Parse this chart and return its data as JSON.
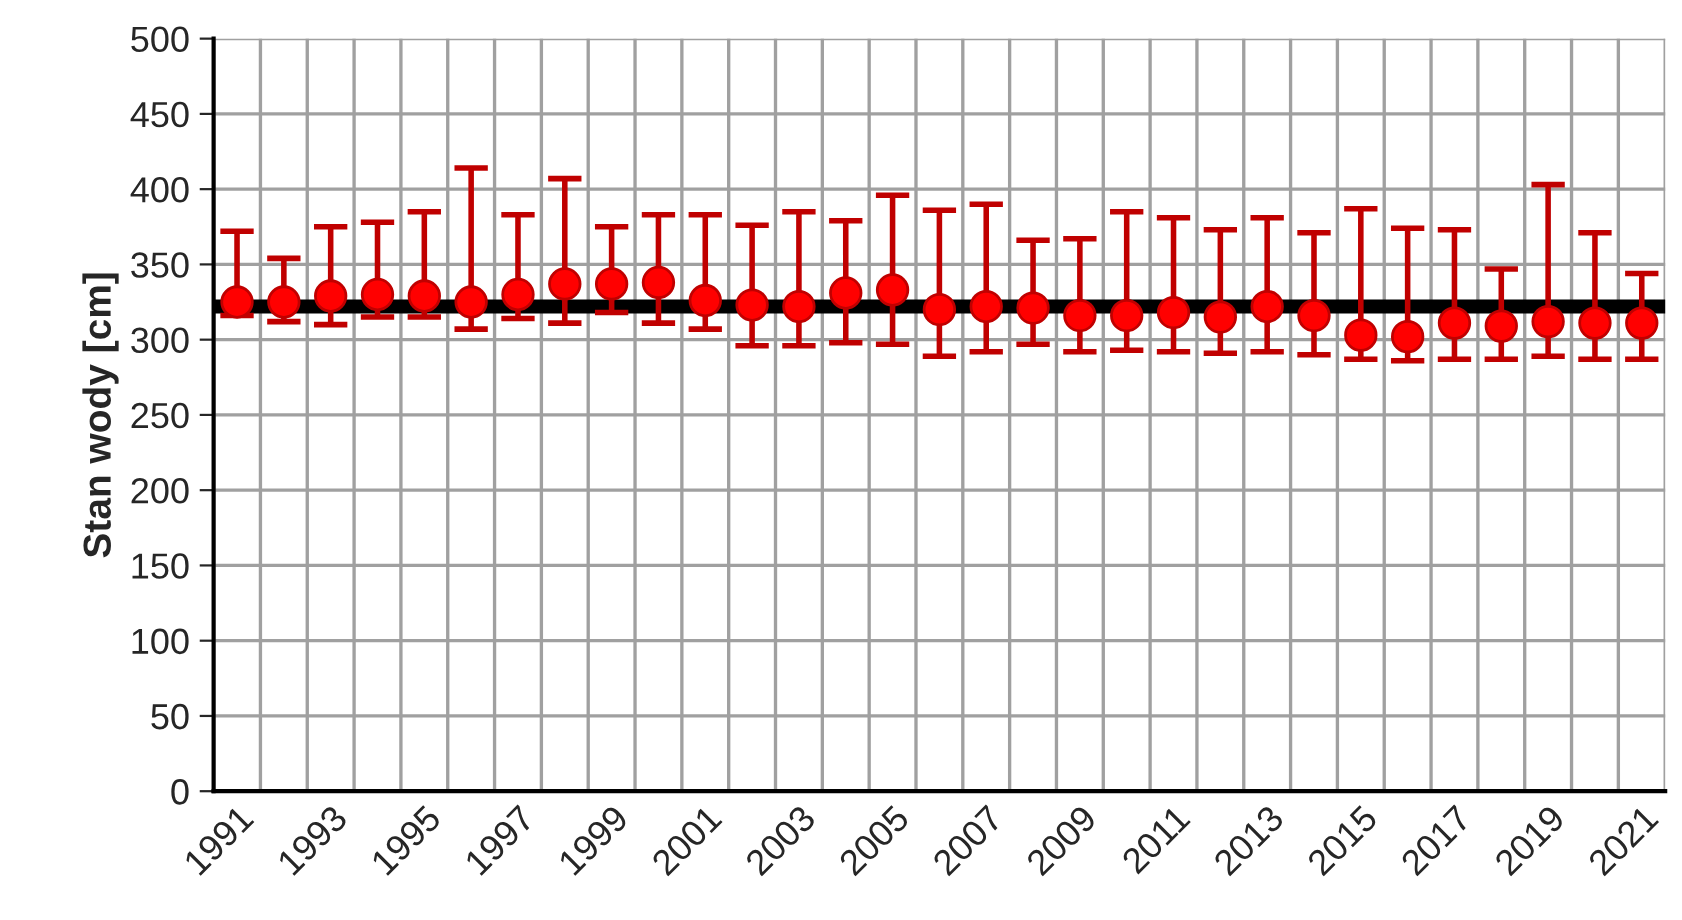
{
  "chart_data": {
    "type": "scatter",
    "ylabel": "Stan wody [cm]",
    "categories": [
      "1991",
      null,
      "1993",
      null,
      "1995",
      null,
      "1997",
      null,
      "1999",
      null,
      "2001",
      null,
      "2003",
      null,
      "2005",
      null,
      "2007",
      null,
      "2009",
      null,
      "2011",
      null,
      "2013",
      null,
      "2015",
      null,
      "2017",
      null,
      "2019",
      null,
      "2021"
    ],
    "series": [
      {
        "color": "#ff0000",
        "values": [
          325,
          325,
          329,
          330,
          329,
          325,
          330,
          337,
          337,
          338,
          326,
          323,
          322,
          331,
          333,
          320,
          322,
          321,
          316,
          316,
          318,
          315,
          322,
          316,
          303,
          302,
          311,
          309,
          312,
          311,
          311
        ],
        "errors": [
          [
            316,
            372
          ],
          [
            312,
            354
          ],
          [
            310,
            375
          ],
          [
            315,
            378
          ],
          [
            315,
            385
          ],
          [
            307,
            414
          ],
          [
            314,
            383
          ],
          [
            311,
            407
          ],
          [
            318,
            375
          ],
          [
            311,
            383
          ],
          [
            307,
            383
          ],
          [
            296,
            376
          ],
          [
            296,
            385
          ],
          [
            298,
            379
          ],
          [
            297,
            396
          ],
          [
            289,
            386
          ],
          [
            292,
            390
          ],
          [
            297,
            366
          ],
          [
            292,
            367
          ],
          [
            293,
            385
          ],
          [
            292,
            381
          ],
          [
            291,
            373
          ],
          [
            292,
            381
          ],
          [
            290,
            371
          ],
          [
            287,
            387
          ],
          [
            286,
            374
          ],
          [
            287,
            373
          ],
          [
            287,
            347
          ],
          [
            289,
            403
          ],
          [
            287,
            371
          ],
          [
            287,
            344
          ]
        ]
      }
    ],
    "ref_lines": [
      {
        "axis": "y",
        "value": 322,
        "color": "#000000",
        "line_style": "solid"
      }
    ],
    "ylim": [
      0,
      500
    ],
    "yticks": [
      0,
      50,
      100,
      150,
      200,
      250,
      300,
      350,
      400,
      450,
      500
    ],
    "grid": true,
    "marker": "circle"
  }
}
